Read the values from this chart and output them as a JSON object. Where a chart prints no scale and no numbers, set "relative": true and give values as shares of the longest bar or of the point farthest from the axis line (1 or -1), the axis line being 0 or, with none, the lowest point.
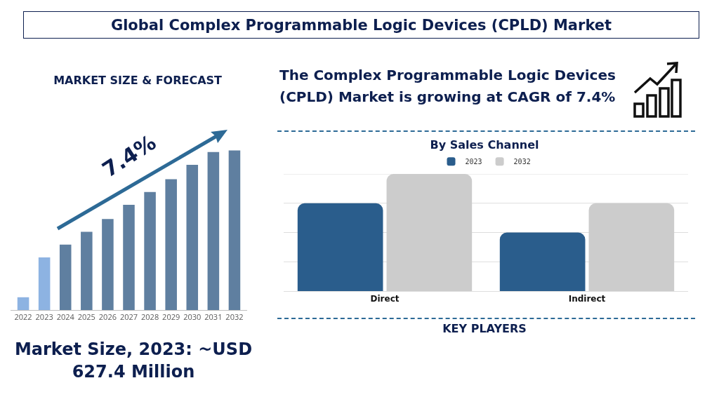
{
  "chart_data": [
    {
      "type": "other",
      "title": "Global Complex Programmable Logic Devices (CPLD) Market",
      "annotations": [
        "The Complex Programmable Logic Devices (CPLD) Market is growing at CAGR of 7.4%",
        "KEY PLAYERS"
      ]
    },
    {
      "type": "bar",
      "title": "MARKET SIZE & FORECAST",
      "categories": [
        "2022",
        "2023",
        "2024",
        "2025",
        "2026",
        "2027",
        "2028",
        "2029",
        "2030",
        "2031",
        "2032"
      ],
      "values": [
        0.08,
        0.33,
        0.41,
        0.49,
        0.57,
        0.66,
        0.74,
        0.82,
        0.91,
        0.99,
        1
      ],
      "colors": [
        "#8db3e2",
        "#8db3e2",
        "#5f7fa0",
        "#5f7fa0",
        "#5f7fa0",
        "#5f7fa0",
        "#5f7fa0",
        "#5f7fa0",
        "#5f7fa0",
        "#5f7fa0",
        "#5f7fa0"
      ],
      "relative": true,
      "annotations": [
        "7.4%",
        "Market Size, 2023: ~USD 627.4 Million"
      ]
    },
    {
      "type": "bar",
      "title": "By Sales Channel",
      "categories": [
        "Direct",
        "Indirect"
      ],
      "relative": true,
      "legend": "top",
      "ref_lines": [
        {
          "axis": "y",
          "value": 0.25,
          "color": "#dddddd"
        },
        {
          "axis": "y",
          "value": 0.5,
          "color": "#dddddd"
        },
        {
          "axis": "y",
          "value": 0.75,
          "color": "#dddddd"
        },
        {
          "axis": "y",
          "value": 1,
          "color": "#dddddd"
        }
      ],
      "series": [
        {
          "name": "2023",
          "color": "#2a5d8c",
          "values": [
            0.75,
            0.5
          ]
        },
        {
          "name": "2032",
          "color": "#cccccc",
          "values": [
            1,
            0.75
          ]
        }
      ]
    }
  ]
}
